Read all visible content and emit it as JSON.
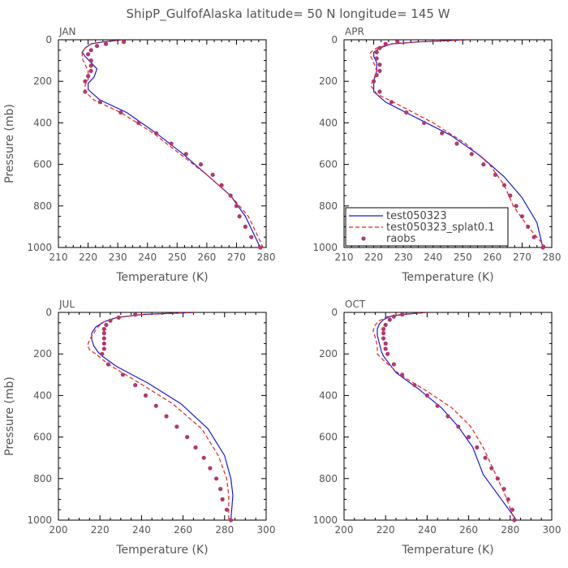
{
  "title": "ShipP_GulfofAlaska   latitude= 50 N longitude= 145 W",
  "colors": {
    "model1": "#1a1ad6",
    "model2": "#e8241c",
    "raobs": "#b03a6e"
  },
  "legend": {
    "panel_index": 1,
    "entries": [
      {
        "label": "test050323",
        "style": "solid",
        "color_key": "model1"
      },
      {
        "label": "test050323_splat0.1",
        "style": "dashed",
        "color_key": "model2"
      },
      {
        "label": "raobs",
        "style": "dot",
        "color_key": "raobs"
      }
    ]
  },
  "chart_data": [
    {
      "type": "line",
      "panel": "JAN",
      "xlabel": "Temperature (K)",
      "ylabel": "Pressure (mb)",
      "xlim": [
        210,
        280
      ],
      "ylim": [
        1000,
        0
      ],
      "xticks": [
        210,
        220,
        230,
        240,
        250,
        260,
        270,
        280
      ],
      "yticks": [
        0,
        200,
        400,
        600,
        800,
        1000
      ],
      "series": [
        {
          "name": "test050323",
          "color_key": "model1",
          "style": "solid",
          "points": [
            [
              232,
              0
            ],
            [
              225,
              10
            ],
            [
              221,
              20
            ],
            [
              219,
              40
            ],
            [
              218,
              60
            ],
            [
              219,
              80
            ],
            [
              221,
              110
            ],
            [
              223,
              140
            ],
            [
              222,
              180
            ],
            [
              220,
              210
            ],
            [
              220,
              240
            ],
            [
              224,
              290
            ],
            [
              233,
              350
            ],
            [
              243,
              450
            ],
            [
              252,
              550
            ],
            [
              260,
              650
            ],
            [
              268,
              750
            ],
            [
              273,
              850
            ],
            [
              278,
              1000
            ]
          ]
        },
        {
          "name": "test050323_splat0.1",
          "color_key": "model2",
          "style": "dashed",
          "points": [
            [
              232,
              0
            ],
            [
              225,
              10
            ],
            [
              221,
              20
            ],
            [
              219,
              40
            ],
            [
              218,
              60
            ],
            [
              218,
              90
            ],
            [
              219,
              120
            ],
            [
              220,
              150
            ],
            [
              220,
              190
            ],
            [
              219,
              220
            ],
            [
              219,
              250
            ],
            [
              222,
              290
            ],
            [
              231,
              350
            ],
            [
              242,
              450
            ],
            [
              251,
              550
            ],
            [
              260,
              650
            ],
            [
              268,
              750
            ],
            [
              274,
              850
            ],
            [
              279,
              1000
            ]
          ]
        }
      ],
      "points": {
        "name": "raobs",
        "values": [
          [
            232,
            10
          ],
          [
            226,
            20
          ],
          [
            223,
            30
          ],
          [
            221,
            50
          ],
          [
            220,
            70
          ],
          [
            221,
            100
          ],
          [
            221,
            125
          ],
          [
            221,
            150
          ],
          [
            220,
            175
          ],
          [
            219,
            200
          ],
          [
            219,
            250
          ],
          [
            224,
            300
          ],
          [
            231,
            350
          ],
          [
            237,
            400
          ],
          [
            243,
            450
          ],
          [
            248,
            500
          ],
          [
            253,
            550
          ],
          [
            258,
            600
          ],
          [
            262,
            650
          ],
          [
            265,
            700
          ],
          [
            268,
            750
          ],
          [
            270,
            800
          ],
          [
            271,
            850
          ],
          [
            273,
            900
          ],
          [
            275,
            950
          ],
          [
            278,
            1000
          ]
        ]
      }
    },
    {
      "type": "line",
      "panel": "APR",
      "xlabel": "Temperature (K)",
      "ylabel": "",
      "xlim": [
        210,
        280
      ],
      "ylim": [
        1000,
        0
      ],
      "xticks": [
        210,
        220,
        230,
        240,
        250,
        260,
        270,
        280
      ],
      "yticks": [
        0,
        200,
        400,
        600,
        800,
        1000
      ],
      "series": [
        {
          "name": "test050323",
          "color_key": "model1",
          "style": "solid",
          "points": [
            [
              252,
              0
            ],
            [
              235,
              10
            ],
            [
              226,
              20
            ],
            [
              222,
              40
            ],
            [
              220,
              60
            ],
            [
              220,
              80
            ],
            [
              221,
              110
            ],
            [
              221,
              150
            ],
            [
              220,
              200
            ],
            [
              220,
              250
            ],
            [
              224,
              300
            ],
            [
              235,
              380
            ],
            [
              246,
              460
            ],
            [
              256,
              560
            ],
            [
              264,
              660
            ],
            [
              270,
              760
            ],
            [
              275,
              880
            ],
            [
              277,
              1000
            ]
          ]
        },
        {
          "name": "test050323_splat0.1",
          "color_key": "model2",
          "style": "dashed",
          "points": [
            [
              252,
              0
            ],
            [
              235,
              10
            ],
            [
              226,
              20
            ],
            [
              221,
              40
            ],
            [
              219,
              60
            ],
            [
              219,
              80
            ],
            [
              220,
              110
            ],
            [
              221,
              150
            ],
            [
              220,
              190
            ],
            [
              219,
              220
            ],
            [
              221,
              260
            ],
            [
              228,
              310
            ],
            [
              240,
              400
            ],
            [
              251,
              500
            ],
            [
              259,
              600
            ],
            [
              264,
              700
            ],
            [
              267,
              800
            ],
            [
              272,
              900
            ],
            [
              278,
              1000
            ]
          ]
        }
      ],
      "points": {
        "name": "raobs",
        "values": [
          [
            228,
            10
          ],
          [
            224,
            20
          ],
          [
            222,
            40
          ],
          [
            221,
            60
          ],
          [
            221,
            90
          ],
          [
            222,
            120
          ],
          [
            222,
            150
          ],
          [
            221,
            170
          ],
          [
            220,
            200
          ],
          [
            222,
            250
          ],
          [
            226,
            300
          ],
          [
            231,
            350
          ],
          [
            237,
            400
          ],
          [
            243,
            450
          ],
          [
            248,
            500
          ],
          [
            253,
            550
          ],
          [
            257,
            600
          ],
          [
            261,
            650
          ],
          [
            264,
            700
          ],
          [
            266,
            750
          ],
          [
            268,
            800
          ],
          [
            270,
            850
          ],
          [
            272,
            900
          ],
          [
            274,
            950
          ],
          [
            277,
            1000
          ]
        ]
      }
    },
    {
      "type": "line",
      "panel": "JUL",
      "xlabel": "Temperature (K)",
      "ylabel": "Pressure (mb)",
      "xlim": [
        200,
        300
      ],
      "ylim": [
        1000,
        0
      ],
      "xticks": [
        200,
        220,
        240,
        260,
        280,
        300
      ],
      "yticks": [
        0,
        200,
        400,
        600,
        800,
        1000
      ],
      "series": [
        {
          "name": "test050323",
          "color_key": "model1",
          "style": "solid",
          "points": [
            [
              266,
              0
            ],
            [
              240,
              10
            ],
            [
              228,
              25
            ],
            [
              222,
              45
            ],
            [
              218,
              70
            ],
            [
              216,
              100
            ],
            [
              216,
              130
            ],
            [
              217,
              160
            ],
            [
              219,
              190
            ],
            [
              221,
              210
            ],
            [
              228,
              260
            ],
            [
              243,
              340
            ],
            [
              259,
              440
            ],
            [
              272,
              560
            ],
            [
              280,
              690
            ],
            [
              283,
              800
            ],
            [
              284,
              880
            ],
            [
              283,
              1000
            ]
          ]
        },
        {
          "name": "test050323_splat0.1",
          "color_key": "model2",
          "style": "dashed",
          "points": [
            [
              266,
              0
            ],
            [
              240,
              10
            ],
            [
              228,
              25
            ],
            [
              222,
              45
            ],
            [
              219,
              70
            ],
            [
              217,
              100
            ],
            [
              215,
              130
            ],
            [
              214,
              160
            ],
            [
              215,
              180
            ],
            [
              218,
              200
            ],
            [
              224,
              250
            ],
            [
              239,
              340
            ],
            [
              255,
              440
            ],
            [
              269,
              560
            ],
            [
              277,
              690
            ],
            [
              281,
              800
            ],
            [
              282,
              880
            ],
            [
              282,
              1000
            ]
          ]
        }
      ],
      "points": {
        "name": "raobs",
        "values": [
          [
            237,
            10
          ],
          [
            229,
            25
          ],
          [
            225,
            40
          ],
          [
            223,
            60
          ],
          [
            222,
            80
          ],
          [
            222,
            100
          ],
          [
            222,
            125
          ],
          [
            222,
            150
          ],
          [
            222,
            175
          ],
          [
            221,
            200
          ],
          [
            224,
            250
          ],
          [
            231,
            300
          ],
          [
            237,
            350
          ],
          [
            242,
            400
          ],
          [
            247,
            450
          ],
          [
            252,
            500
          ],
          [
            257,
            550
          ],
          [
            262,
            600
          ],
          [
            266,
            650
          ],
          [
            270,
            700
          ],
          [
            273,
            750
          ],
          [
            276,
            800
          ],
          [
            278,
            850
          ],
          [
            279,
            900
          ],
          [
            281,
            950
          ],
          [
            283,
            1000
          ]
        ]
      }
    },
    {
      "type": "line",
      "panel": "OCT",
      "xlabel": "Temperature (K)",
      "ylabel": "",
      "xlim": [
        200,
        300
      ],
      "ylim": [
        1000,
        0
      ],
      "xticks": [
        200,
        220,
        240,
        260,
        280,
        300
      ],
      "yticks": [
        0,
        200,
        400,
        600,
        800,
        1000
      ],
      "series": [
        {
          "name": "test050323",
          "color_key": "model1",
          "style": "solid",
          "points": [
            [
              240,
              0
            ],
            [
              228,
              10
            ],
            [
              222,
              20
            ],
            [
              219,
              35
            ],
            [
              217,
              55
            ],
            [
              216,
              80
            ],
            [
              216,
              110
            ],
            [
              217,
              150
            ],
            [
              218,
              190
            ],
            [
              219,
              210
            ],
            [
              225,
              290
            ],
            [
              236,
              370
            ],
            [
              247,
              460
            ],
            [
              255,
              550
            ],
            [
              262,
              650
            ],
            [
              267,
              780
            ],
            [
              275,
              890
            ],
            [
              283,
              1000
            ]
          ]
        },
        {
          "name": "test050323_splat0.1",
          "color_key": "model2",
          "style": "dashed",
          "points": [
            [
              240,
              0
            ],
            [
              227,
              10
            ],
            [
              221,
              20
            ],
            [
              217,
              40
            ],
            [
              215,
              60
            ],
            [
              214,
              90
            ],
            [
              215,
              120
            ],
            [
              216,
              160
            ],
            [
              216,
              200
            ],
            [
              219,
              230
            ],
            [
              227,
              300
            ],
            [
              240,
              380
            ],
            [
              252,
              460
            ],
            [
              261,
              550
            ],
            [
              267,
              650
            ],
            [
              273,
              780
            ],
            [
              278,
              890
            ],
            [
              282,
              1000
            ]
          ]
        }
      ],
      "points": {
        "name": "raobs",
        "values": [
          [
            228,
            10
          ],
          [
            224,
            20
          ],
          [
            222,
            35
          ],
          [
            220,
            60
          ],
          [
            219,
            80
          ],
          [
            219,
            100
          ],
          [
            219,
            125
          ],
          [
            220,
            150
          ],
          [
            220,
            175
          ],
          [
            221,
            200
          ],
          [
            224,
            250
          ],
          [
            228,
            300
          ],
          [
            234,
            350
          ],
          [
            240,
            400
          ],
          [
            245,
            450
          ],
          [
            250,
            500
          ],
          [
            255,
            550
          ],
          [
            260,
            600
          ],
          [
            264,
            650
          ],
          [
            268,
            700
          ],
          [
            271,
            750
          ],
          [
            274,
            800
          ],
          [
            277,
            850
          ],
          [
            279,
            900
          ],
          [
            281,
            950
          ],
          [
            282,
            1000
          ]
        ]
      }
    }
  ]
}
